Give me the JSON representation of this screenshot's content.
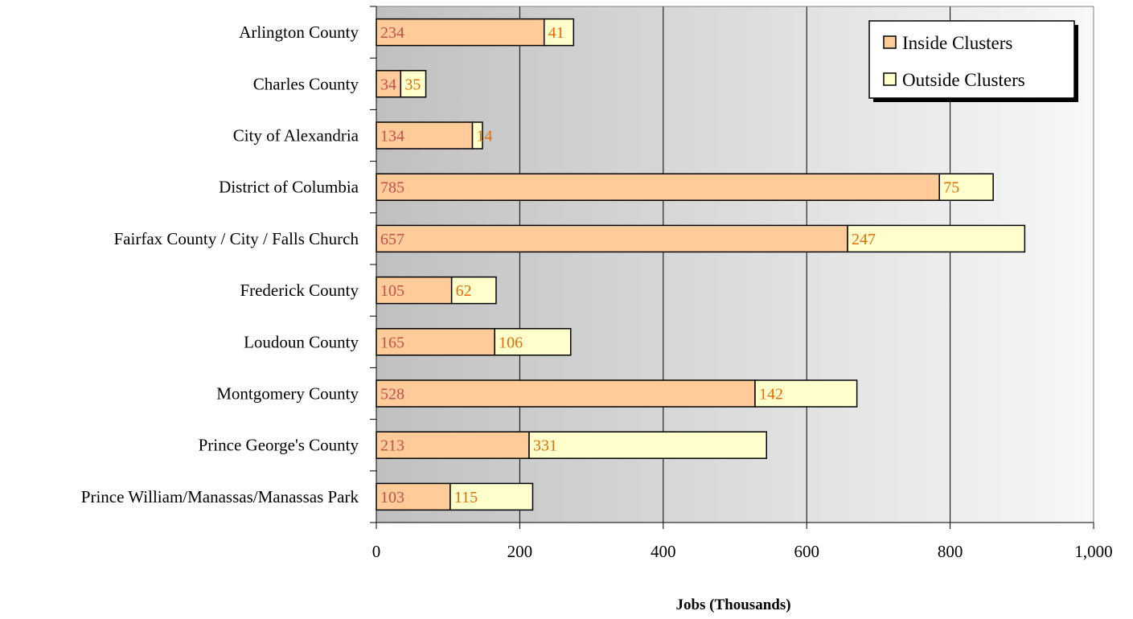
{
  "chart_data": {
    "type": "bar",
    "orientation": "horizontal",
    "stacked": true,
    "title": "",
    "xlabel": "Jobs (Thousands)",
    "ylabel": "",
    "xlim": [
      0,
      1000
    ],
    "x_ticks": [
      0,
      200,
      400,
      600,
      800,
      1000
    ],
    "x_tick_labels": [
      "0",
      "200",
      "400",
      "600",
      "800",
      "1,000"
    ],
    "grid": "vertical",
    "legend_position": "top-right",
    "categories": [
      "Arlington County",
      "Charles County",
      "City of Alexandria",
      "District of Columbia",
      "Fairfax County / City / Falls Church",
      "Frederick County",
      "Loudoun County",
      "Montgomery County",
      "Prince George's County",
      "Prince William/Manassas/Manassas Park"
    ],
    "series": [
      {
        "name": "Inside Clusters",
        "color": "#ffcc99",
        "label_color": "#c0504d",
        "values": [
          234,
          34,
          134,
          785,
          657,
          105,
          165,
          528,
          213,
          103
        ],
        "labels": [
          "234",
          "34",
          "134",
          "785",
          "657",
          "105",
          "165",
          "528",
          "213",
          "103"
        ]
      },
      {
        "name": "Outside Clusters",
        "color": "#ffffcc",
        "label_color": "#e46c0a",
        "values": [
          41,
          35,
          14,
          75,
          247,
          62,
          106,
          142,
          331,
          115
        ],
        "labels": [
          "41",
          "35",
          "14",
          "75",
          "247",
          "62",
          "106",
          "142",
          "331",
          "115"
        ]
      }
    ],
    "background_gradient": [
      "#c0c0c0",
      "#f8f8f8"
    ]
  }
}
